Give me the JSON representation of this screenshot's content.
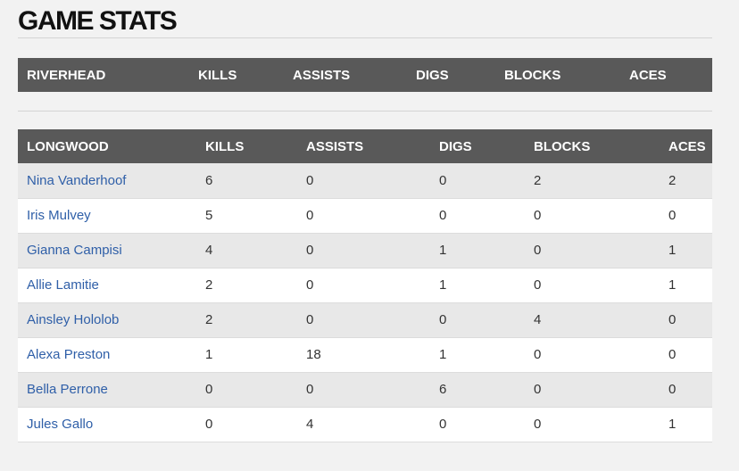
{
  "page": {
    "title": "GAME STATS"
  },
  "teams": [
    {
      "name": "RIVERHEAD",
      "columns": [
        "KILLS",
        "ASSISTS",
        "DIGS",
        "BLOCKS",
        "ACES"
      ],
      "rows": []
    },
    {
      "name": "LONGWOOD",
      "columns": [
        "KILLS",
        "ASSISTS",
        "DIGS",
        "BLOCKS",
        "ACES"
      ],
      "rows": [
        {
          "player": "Nina Vanderhoof",
          "kills": "6",
          "assists": "0",
          "digs": "0",
          "blocks": "2",
          "aces": "2"
        },
        {
          "player": "Iris Mulvey",
          "kills": "5",
          "assists": "0",
          "digs": "0",
          "blocks": "0",
          "aces": "0"
        },
        {
          "player": "Gianna Campisi",
          "kills": "4",
          "assists": "0",
          "digs": "1",
          "blocks": "0",
          "aces": "1"
        },
        {
          "player": "Allie Lamitie",
          "kills": "2",
          "assists": "0",
          "digs": "1",
          "blocks": "0",
          "aces": "1"
        },
        {
          "player": "Ainsley Hololob",
          "kills": "2",
          "assists": "0",
          "digs": "0",
          "blocks": "4",
          "aces": "0"
        },
        {
          "player": "Alexa Preston",
          "kills": "1",
          "assists": "18",
          "digs": "1",
          "blocks": "0",
          "aces": "0"
        },
        {
          "player": "Bella Perrone",
          "kills": "0",
          "assists": "0",
          "digs": "6",
          "blocks": "0",
          "aces": "0"
        },
        {
          "player": "Jules Gallo",
          "kills": "0",
          "assists": "4",
          "digs": "0",
          "blocks": "0",
          "aces": "1"
        }
      ]
    }
  ]
}
